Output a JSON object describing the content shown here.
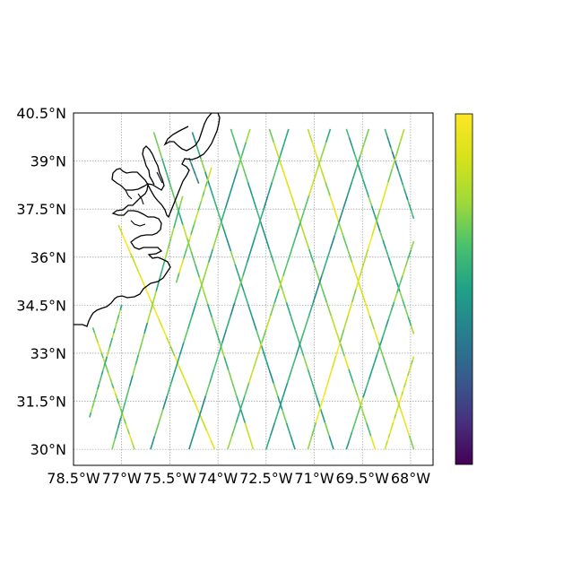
{
  "map": {
    "lon_range": [
      -78.5,
      -67.3
    ],
    "lat_range": [
      29.5,
      40.5
    ],
    "x_ticks": [
      {
        "value": -78.5,
        "label": "78.5°W"
      },
      {
        "value": -77.0,
        "label": "77°W"
      },
      {
        "value": -75.5,
        "label": "75.5°W"
      },
      {
        "value": -74.0,
        "label": "74°W"
      },
      {
        "value": -72.5,
        "label": "72.5°W"
      },
      {
        "value": -71.0,
        "label": "71°W"
      },
      {
        "value": -69.5,
        "label": "69.5°W"
      },
      {
        "value": -68.0,
        "label": "68°W"
      }
    ],
    "y_ticks": [
      {
        "value": 40.5,
        "label": "40.5°N"
      },
      {
        "value": 39.0,
        "label": "39°N"
      },
      {
        "value": 37.5,
        "label": "37.5°N"
      },
      {
        "value": 36.0,
        "label": "36°N"
      },
      {
        "value": 34.5,
        "label": "34.5°N"
      },
      {
        "value": 33.0,
        "label": "33°N"
      },
      {
        "value": 31.5,
        "label": "31.5°N"
      },
      {
        "value": 30.0,
        "label": "30°N"
      }
    ],
    "gridlines": true,
    "coastline_color": "#000000",
    "colormap": "viridis",
    "colorbar_position": "right",
    "colorbar_ticks": []
  },
  "chart_data": {
    "type": "scatter",
    "description_free": true,
    "descending_tracks": [
      {
        "start": [
          -76.0,
          39.9
        ],
        "end": [
          -72.9,
          30.0
        ],
        "v": 0.68
      },
      {
        "start": [
          -74.8,
          39.9
        ],
        "end": [
          -71.6,
          30.0
        ],
        "v": 0.55
      },
      {
        "start": [
          -73.6,
          40.0
        ],
        "end": [
          -70.4,
          30.0
        ],
        "v": 0.6
      },
      {
        "start": [
          -72.4,
          40.0
        ],
        "end": [
          -69.1,
          30.0
        ],
        "v": 0.75
      },
      {
        "start": [
          -71.2,
          40.0
        ],
        "end": [
          -67.9,
          30.0
        ],
        "v": 0.82
      },
      {
        "start": [
          -70.0,
          40.0
        ],
        "end": [
          -67.9,
          33.6
        ],
        "v": 0.62
      },
      {
        "start": [
          -68.8,
          40.0
        ],
        "end": [
          -67.9,
          37.2
        ],
        "v": 0.5
      },
      {
        "start": [
          -77.1,
          37.0
        ],
        "end": [
          -74.1,
          30.0
        ],
        "v": 0.85
      },
      {
        "start": [
          -77.9,
          33.8
        ],
        "end": [
          -76.6,
          30.0
        ],
        "v": 0.78
      },
      {
        "start": [
          -74.9,
          39.1
        ],
        "end": [
          -74.6,
          38.3
        ],
        "v": 0.4
      }
    ],
    "ascending_tracks": [
      {
        "start": [
          -76.1,
          30.0
        ],
        "end": [
          -73.0,
          40.0
        ],
        "v": 0.58
      },
      {
        "start": [
          -74.9,
          30.0
        ],
        "end": [
          -71.8,
          40.0
        ],
        "v": 0.52
      },
      {
        "start": [
          -73.7,
          30.0
        ],
        "end": [
          -70.5,
          40.0
        ],
        "v": 0.7
      },
      {
        "start": [
          -72.5,
          30.0
        ],
        "end": [
          -69.3,
          40.0
        ],
        "v": 0.56
      },
      {
        "start": [
          -71.2,
          30.0
        ],
        "end": [
          -68.2,
          40.0
        ],
        "v": 0.85
      },
      {
        "start": [
          -70.0,
          30.0
        ],
        "end": [
          -67.9,
          36.5
        ],
        "v": 0.64
      },
      {
        "start": [
          -68.8,
          30.0
        ],
        "end": [
          -67.9,
          32.9
        ],
        "v": 0.88
      },
      {
        "start": [
          -77.3,
          30.0
        ],
        "end": [
          -75.1,
          37.9
        ],
        "v": 0.62
      },
      {
        "start": [
          -78.0,
          31.0
        ],
        "end": [
          -77.0,
          34.5
        ],
        "v": 0.66
      },
      {
        "start": [
          -75.3,
          35.2
        ],
        "end": [
          -74.2,
          38.8
        ],
        "v": 0.8
      }
    ]
  }
}
